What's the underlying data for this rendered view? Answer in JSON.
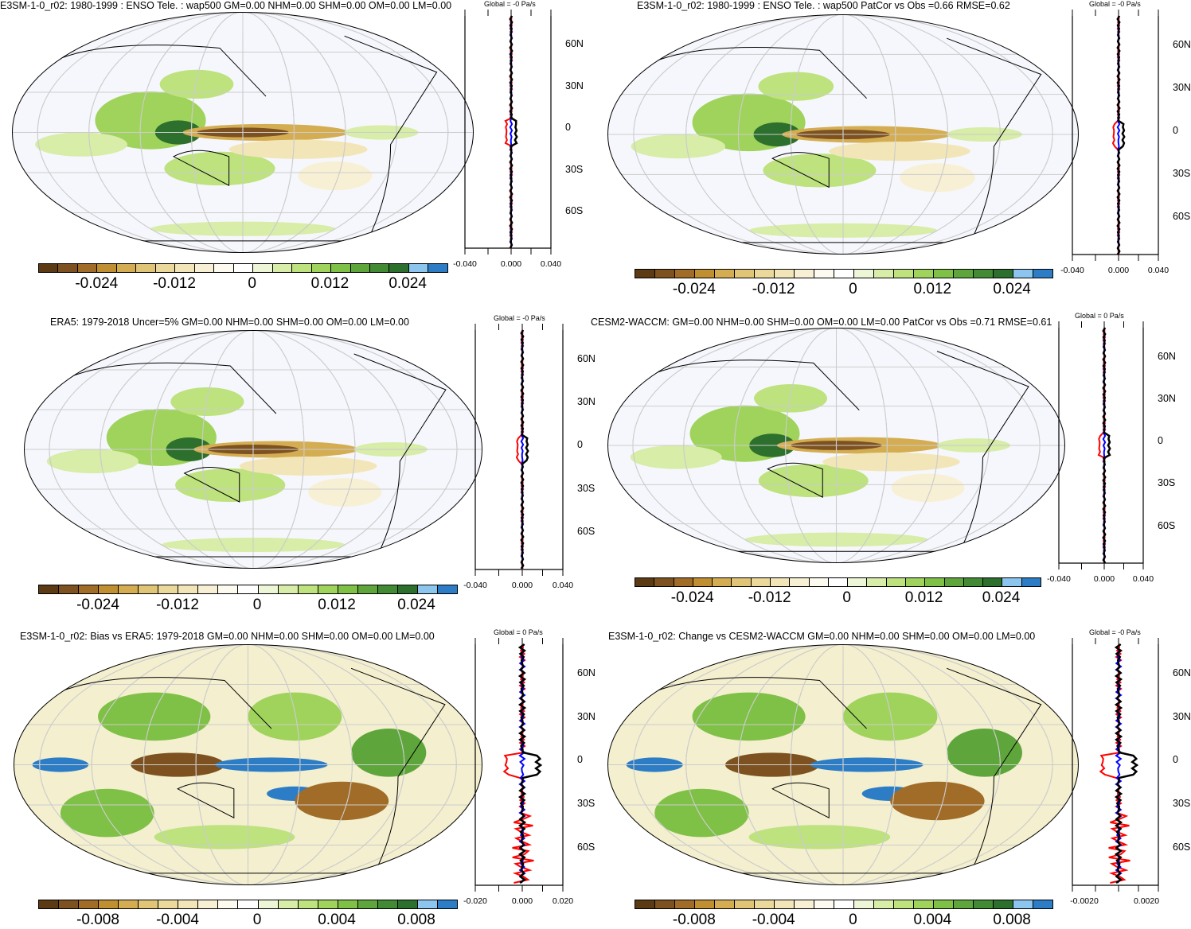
{
  "colorbar_colors": [
    "#5b3a14",
    "#7d5220",
    "#a06c28",
    "#c08f32",
    "#d4ad52",
    "#e0c577",
    "#ead99a",
    "#f2e6b8",
    "#f8f0d4",
    "#fdfaf0",
    "#ffffff",
    "#eef6d8",
    "#d7eda8",
    "#bde27e",
    "#9fd35c",
    "#7fc046",
    "#5ea63b",
    "#428b34",
    "#2d6f2c",
    "#8cc6ee",
    "#2c7dc6"
  ],
  "profile_colors": {
    "model": "#0000ff",
    "obs": "#ff0000",
    "diff": "#000000"
  },
  "panels": [
    {
      "title": "E3SM-1-0_r02: 1980-1999 : ENSO Tele. : wap500 GM=0.00 NHM=0.00 SHM=0.00 OM=0.00 LM=0.00",
      "global": "Global = -0 Pa/s",
      "lat_labels": [
        "60N",
        "30N",
        "0",
        "30S",
        "60S"
      ],
      "x_ticks": [
        "-0.040",
        "0.000",
        "0.040"
      ],
      "cb_labels": [
        "-0.024",
        "-0.012",
        "0",
        "0.012",
        "0.024"
      ]
    },
    {
      "title": "E3SM-1-0_r02: 1980-1999 : ENSO Tele. : wap500 PatCor vs Obs =0.66 RMSE=0.62",
      "global": "Global = -0 Pa/s",
      "lat_labels": [
        "60N",
        "30N",
        "0",
        "30S",
        "60S"
      ],
      "x_ticks": [
        "-0.040",
        "0.000",
        "0.040"
      ],
      "cb_labels": [
        "-0.024",
        "-0.012",
        "0",
        "0.012",
        "0.024"
      ]
    },
    {
      "title": "ERA5: 1979-2018 Uncer=5% GM=0.00 NHM=0.00 SHM=0.00 OM=0.00 LM=0.00",
      "global": "Global = -0 Pa/s",
      "lat_labels": [
        "60N",
        "30N",
        "0",
        "30S",
        "60S"
      ],
      "x_ticks": [
        "-0.040",
        "0.000",
        "0.040"
      ],
      "cb_labels": [
        "-0.024",
        "-0.012",
        "0",
        "0.012",
        "0.024"
      ]
    },
    {
      "title": "CESM2-WACCM: GM=0.00 NHM=0.00 SHM=0.00 OM=0.00 LM=0.00 PatCor vs Obs =0.71 RMSE=0.61",
      "global": "Global = 0 Pa/s",
      "lat_labels": [
        "60N",
        "30N",
        "0",
        "30S",
        "60S"
      ],
      "x_ticks": [
        "-0.040",
        "0.000",
        "0.040"
      ],
      "cb_labels": [
        "-0.024",
        "-0.012",
        "0",
        "0.012",
        "0.024"
      ]
    },
    {
      "title": "E3SM-1-0_r02: Bias vs ERA5: 1979-2018 GM=0.00 NHM=0.00 SHM=0.00 OM=0.00 LM=0.00",
      "global": "Global = 0 Pa/s",
      "lat_labels": [
        "60N",
        "30N",
        "0",
        "30S",
        "60S"
      ],
      "x_ticks": [
        "-0.020",
        "0.000",
        "0.020"
      ],
      "cb_labels": [
        "-0.008",
        "-0.004",
        "0",
        "0.004",
        "0.008"
      ]
    },
    {
      "title": "E3SM-1-0_r02: Change vs CESM2-WACCM GM=0.00 NHM=0.00 SHM=0.00 OM=0.00 LM=0.00",
      "global": "Global = -0 Pa/s",
      "lat_labels": [
        "60N",
        "30N",
        "0",
        "30S",
        "60S"
      ],
      "x_ticks": [
        "-0.0020",
        "0.0020"
      ],
      "cb_labels": [
        "-0.008",
        "-0.004",
        "0",
        "0.004",
        "0.008"
      ]
    }
  ]
}
